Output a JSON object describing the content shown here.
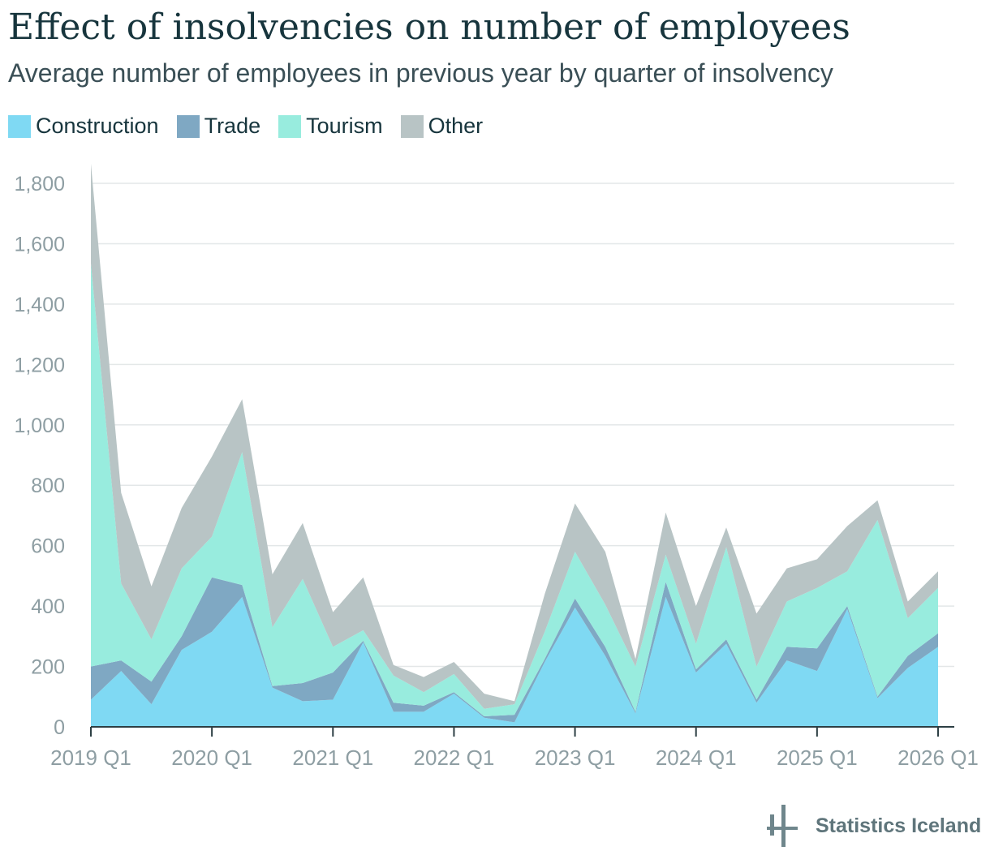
{
  "title": "Effect of insolvencies on number of employees",
  "subtitle": "Average number of employees in previous year by quarter of insolvency",
  "legend": [
    {
      "label": "Construction",
      "color": "#7fd9f3"
    },
    {
      "label": "Trade",
      "color": "#7fa8c3"
    },
    {
      "label": "Tourism",
      "color": "#98ecde"
    },
    {
      "label": "Other",
      "color": "#b8c4c5"
    }
  ],
  "branding": {
    "name": "Statistics Iceland",
    "icon": "statistics-iceland-logo-icon"
  },
  "chart_data": {
    "type": "area",
    "stacked": true,
    "title": "Effect of insolvencies on number of employees",
    "subtitle": "Average number of employees in previous year by quarter of insolvency",
    "xlabel": "",
    "ylabel": "",
    "ylim": [
      0,
      1870
    ],
    "yticks": [
      0,
      200,
      400,
      600,
      800,
      1000,
      1200,
      1400,
      1600,
      1800
    ],
    "ytick_labels": [
      "0",
      "200",
      "400",
      "600",
      "800",
      "1,000",
      "1,200",
      "1,400",
      "1,600",
      "1,800"
    ],
    "xticks": [
      "2019 Q1",
      "2020 Q1",
      "2021 Q1",
      "2022 Q1",
      "2023 Q1",
      "2024 Q1",
      "2025 Q1",
      "2026 Q1"
    ],
    "grid": true,
    "legend_position": "top-left",
    "categories": [
      "2019 Q1",
      "2019 Q2",
      "2019 Q3",
      "2019 Q4",
      "2020 Q1",
      "2020 Q2",
      "2020 Q3",
      "2020 Q4",
      "2021 Q1",
      "2021 Q2",
      "2021 Q3",
      "2021 Q4",
      "2022 Q1",
      "2022 Q2",
      "2022 Q3",
      "2022 Q4",
      "2023 Q1",
      "2023 Q2",
      "2023 Q3",
      "2023 Q4",
      "2024 Q1",
      "2024 Q2",
      "2024 Q3",
      "2024 Q4",
      "2025 Q1",
      "2025 Q2",
      "2025 Q3",
      "2025 Q4",
      "2026 Q1"
    ],
    "series": [
      {
        "name": "Construction",
        "color": "#7fd9f3",
        "values": [
          90,
          185,
          75,
          255,
          315,
          430,
          130,
          85,
          90,
          280,
          50,
          50,
          110,
          30,
          15,
          215,
          395,
          235,
          45,
          430,
          180,
          275,
          80,
          220,
          185,
          390,
          95,
          195,
          265
        ]
      },
      {
        "name": "Trade",
        "color": "#7fa8c3",
        "values": [
          110,
          35,
          75,
          45,
          180,
          40,
          5,
          60,
          90,
          5,
          30,
          20,
          5,
          5,
          25,
          10,
          30,
          30,
          5,
          50,
          10,
          15,
          10,
          45,
          75,
          10,
          5,
          40,
          45
        ]
      },
      {
        "name": "Tourism",
        "color": "#98ecde",
        "values": [
          1335,
          255,
          140,
          225,
          135,
          440,
          195,
          345,
          85,
          35,
          90,
          45,
          60,
          25,
          35,
          90,
          155,
          140,
          150,
          90,
          85,
          305,
          110,
          150,
          200,
          115,
          585,
          125,
          150
        ]
      },
      {
        "name": "Other",
        "color": "#b8c4c5",
        "values": [
          330,
          300,
          175,
          200,
          265,
          175,
          175,
          185,
          115,
          175,
          35,
          50,
          40,
          50,
          10,
          125,
          160,
          175,
          25,
          140,
          125,
          65,
          175,
          110,
          95,
          150,
          65,
          55,
          55
        ]
      }
    ]
  }
}
